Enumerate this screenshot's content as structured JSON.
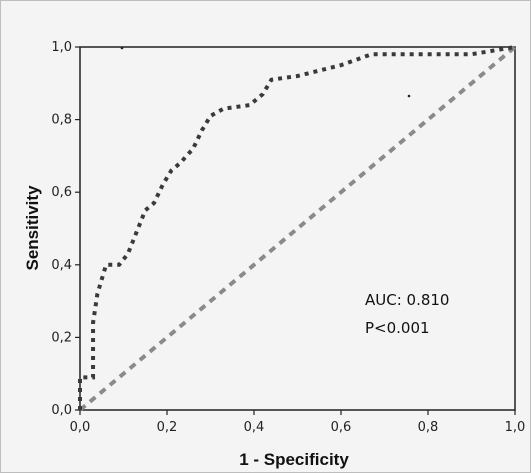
{
  "chart_data": {
    "type": "line",
    "title": "",
    "xlabel": "1 - Specificity",
    "ylabel": "Sensitivity",
    "xlim": [
      0,
      1
    ],
    "ylim": [
      0,
      1
    ],
    "x_ticks": [
      "0,0",
      "0,2",
      "0,4",
      "0,6",
      "0,8",
      "1,0"
    ],
    "y_ticks": [
      "0,0",
      "0,2",
      "0,4",
      "0,6",
      "0,8",
      "1,0"
    ],
    "grid": false,
    "series": [
      {
        "name": "",
        "style": "dotted",
        "color": "#3a3a3a",
        "points": [
          [
            0.0,
            0.0
          ],
          [
            0.0,
            0.09
          ],
          [
            0.03,
            0.09
          ],
          [
            0.03,
            0.24
          ],
          [
            0.04,
            0.32
          ],
          [
            0.06,
            0.4
          ],
          [
            0.09,
            0.4
          ],
          [
            0.11,
            0.43
          ],
          [
            0.13,
            0.49
          ],
          [
            0.15,
            0.55
          ],
          [
            0.17,
            0.57
          ],
          [
            0.19,
            0.62
          ],
          [
            0.21,
            0.66
          ],
          [
            0.23,
            0.68
          ],
          [
            0.26,
            0.72
          ],
          [
            0.28,
            0.77
          ],
          [
            0.3,
            0.81
          ],
          [
            0.33,
            0.83
          ],
          [
            0.39,
            0.84
          ],
          [
            0.42,
            0.87
          ],
          [
            0.44,
            0.91
          ],
          [
            0.5,
            0.92
          ],
          [
            0.6,
            0.95
          ],
          [
            0.67,
            0.98
          ],
          [
            0.8,
            0.98
          ],
          [
            0.9,
            0.98
          ],
          [
            1.0,
            1.0
          ]
        ]
      },
      {
        "name": "",
        "style": "dashed",
        "color": "#8a8a8a",
        "points": [
          [
            0,
            0
          ],
          [
            1,
            1
          ]
        ]
      }
    ],
    "annotations": {
      "auc": "AUC: 0.810",
      "p": "P<0.001"
    }
  }
}
